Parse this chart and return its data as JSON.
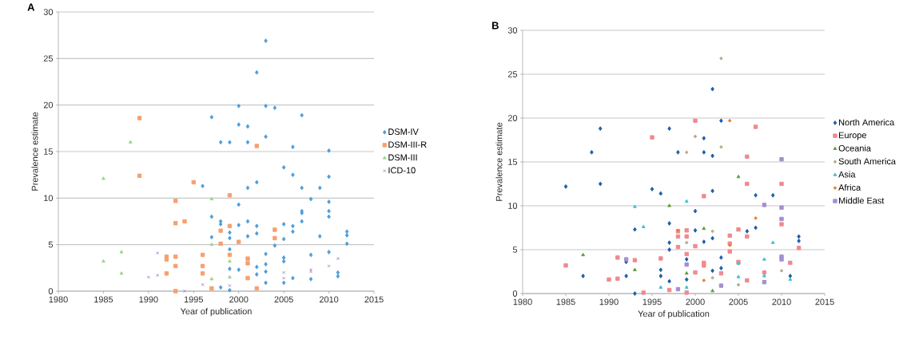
{
  "chart_data": [
    {
      "type": "scatter",
      "title": "A",
      "xlabel": "Year of publication",
      "ylabel": "Prevalence estimate",
      "xlim": [
        1980,
        2015
      ],
      "ylim": [
        0,
        30
      ],
      "xticks": [
        1980,
        1985,
        1990,
        1995,
        2000,
        2005,
        2010,
        2015
      ],
      "yticks": [
        0,
        5,
        10,
        15,
        20,
        25,
        30
      ],
      "grid": "y",
      "legend": "right",
      "series": [
        {
          "name": "DSM-IV",
          "color": "#4f9fdc",
          "marker": "diamond",
          "x": [
            2003,
            2002,
            2000,
            2003,
            2004,
            1997,
            2007,
            2000,
            2001,
            1998,
            1999,
            2001,
            2003,
            2006,
            2010,
            2005,
            2006,
            2010,
            1996,
            2001,
            2002,
            2007,
            2009,
            2008,
            2000,
            2010,
            1997,
            1998,
            1998,
            2000,
            2001,
            2002,
            1999,
            1999,
            1997,
            2001,
            2002,
            2005,
            2005,
            2006,
            2006,
            2007,
            2007,
            2007,
            2010,
            2010,
            2009,
            2012,
            2012,
            2012,
            2004,
            1999,
            2003,
            2008,
            2010,
            2005,
            2005,
            2003,
            2003,
            2002,
            2002,
            2000,
            1999,
            2006,
            2008,
            2011,
            2011,
            2003,
            2005,
            1998,
            1999
          ],
          "values": [
            26.9,
            23.5,
            19.9,
            19.9,
            19.7,
            18.7,
            18.9,
            17.9,
            17.7,
            16,
            16,
            16,
            16.6,
            15.5,
            15.1,
            13.3,
            12.5,
            12.3,
            11.3,
            11.1,
            11.7,
            11.1,
            11.1,
            9.9,
            9.3,
            9.6,
            8,
            7.5,
            7.2,
            7.1,
            7.5,
            7,
            6.3,
            5.7,
            5.8,
            5.9,
            6.2,
            7.2,
            5.6,
            7,
            6.4,
            8.6,
            8.4,
            7.5,
            8.6,
            8,
            5.9,
            6.4,
            6,
            5.1,
            4.9,
            4.5,
            4,
            3.9,
            4.2,
            3.6,
            3.2,
            2.9,
            2.1,
            2.6,
            1.8,
            2.3,
            2.4,
            1.4,
            1.3,
            2,
            1.6,
            0.9,
            0.9,
            0.4,
            0.1
          ]
        },
        {
          "name": "DSM-III-R",
          "color": "#f7a06e",
          "marker": "square",
          "x": [
            1989,
            1989,
            1995,
            1993,
            1999,
            1993,
            1994,
            1998,
            1999,
            1998,
            2000,
            1992,
            1992,
            1993,
            1993,
            1992,
            1993,
            1996,
            1996,
            1996,
            1997,
            1999,
            2002,
            2001,
            2001,
            2001,
            2002,
            2004,
            2004
          ],
          "values": [
            18.6,
            12.4,
            11.7,
            9.7,
            10.3,
            7.3,
            7.5,
            6.5,
            7,
            5.1,
            5.3,
            3.7,
            3.4,
            3.7,
            2.7,
            1.9,
            0,
            3.9,
            2.7,
            1.9,
            0.3,
            3.9,
            15.6,
            3.5,
            3,
            1.4,
            0.3,
            6.6,
            5.7
          ]
        },
        {
          "name": "DSM-III",
          "color": "#9fd68a",
          "marker": "triangle",
          "x": [
            1985,
            1985,
            1987,
            1987,
            1988,
            1997,
            1997,
            1997,
            1999,
            1999
          ],
          "values": [
            12.1,
            3.2,
            4.2,
            1.9,
            16,
            9.9,
            5,
            1.3,
            3.2,
            1.5
          ]
        },
        {
          "name": "ICD-10",
          "color": "#a88fc8",
          "marker": "cross",
          "x": [
            1990,
            1991,
            1991,
            1994,
            1996,
            1999,
            2005,
            2005,
            2008,
            2008,
            2010,
            2011
          ],
          "values": [
            1.5,
            1.7,
            4.1,
            0,
            0.7,
            0.6,
            2,
            1.4,
            2.3,
            2.1,
            2.7,
            3.5
          ]
        }
      ]
    },
    {
      "type": "scatter",
      "title": "B",
      "xlabel": "Year of publication",
      "ylabel": "Prevalence estimate",
      "xlim": [
        1980,
        2015
      ],
      "ylim": [
        0,
        30
      ],
      "xticks": [
        1980,
        1985,
        1990,
        1995,
        2000,
        2005,
        2010,
        2015
      ],
      "yticks": [
        0,
        5,
        10,
        15,
        20,
        25,
        30
      ],
      "grid": "y",
      "legend": "right",
      "series": [
        {
          "name": "North America",
          "color": "#1f5fa8",
          "marker": "diamond",
          "x": [
            1985,
            1987,
            1988,
            1989,
            1989,
            1992,
            1992,
            1993,
            1993,
            1995,
            1996,
            1996,
            1996,
            1997,
            1997,
            1997,
            1997,
            1997,
            1998,
            1999,
            1999,
            2000,
            2000,
            2001,
            2001,
            2001,
            2002,
            2003,
            2002,
            2002,
            2002,
            2002,
            2003,
            2003,
            2006,
            2007,
            2007,
            2009,
            2011,
            2012,
            2012
          ],
          "values": [
            12.2,
            2,
            16.1,
            18.8,
            12.5,
            3.6,
            2,
            7.3,
            0,
            11.9,
            11.4,
            2.7,
            2,
            18.8,
            8,
            5.8,
            5,
            1.4,
            16.1,
            3.9,
            1.6,
            9.4,
            7.2,
            16.1,
            17.7,
            5.9,
            23.3,
            19.7,
            15.7,
            11.7,
            6.3,
            2.6,
            4.1,
            2.9,
            7.1,
            7.5,
            11.2,
            11.2,
            2,
            6.5,
            6
          ]
        },
        {
          "name": "Europe",
          "color": "#f08a8f",
          "marker": "square",
          "x": [
            1985,
            1990,
            1991,
            1991,
            1993,
            1994,
            1995,
            1996,
            1997,
            1998,
            1998,
            1998,
            1999,
            1999,
            1999,
            1999,
            2000,
            2000,
            2000,
            2001,
            2001,
            2001,
            2003,
            2004,
            2004,
            2004,
            2005,
            2005,
            2006,
            2006,
            2006,
            2006,
            2007,
            2008,
            2010,
            2010,
            2011,
            2012
          ],
          "values": [
            3.2,
            1.6,
            4.1,
            1.7,
            3.8,
            0.1,
            17.8,
            4,
            0.4,
            7.1,
            6.5,
            5.3,
            7.2,
            6.5,
            4.5,
            0.1,
            19.7,
            5.4,
            2.4,
            11.1,
            3.5,
            3.2,
            2.3,
            6.6,
            5.7,
            4.8,
            7.3,
            3.6,
            15.6,
            12.5,
            6.5,
            1.5,
            19,
            2.4,
            12.5,
            7.9,
            3.5,
            5.2
          ]
        },
        {
          "name": "Oceania",
          "color": "#5f9f3a",
          "marker": "triangle",
          "x": [
            1987,
            1993,
            1997,
            1999,
            2001,
            2002,
            2005
          ],
          "values": [
            4.4,
            2.7,
            10,
            2.3,
            7.4,
            0.3,
            13.3
          ]
        },
        {
          "name": "South America",
          "color": "#b6ab8c",
          "marker": "circle",
          "x": [
            1999,
            2000,
            2003,
            2003,
            1999,
            2002,
            2002,
            2005,
            2010
          ],
          "values": [
            16.1,
            17.9,
            26.8,
            16.7,
            5.8,
            7.1,
            1.8,
            1,
            2.6
          ]
        },
        {
          "name": "Asia",
          "color": "#3fc2d8",
          "marker": "triangle",
          "x": [
            1993,
            1994,
            1996,
            1999,
            1999,
            2005,
            2005,
            2008,
            2008,
            2009,
            2011
          ],
          "values": [
            9.9,
            7.6,
            0.7,
            10.5,
            0.7,
            3.4,
            1.9,
            3.9,
            2,
            5.8,
            1.6
          ]
        },
        {
          "name": "Africa",
          "color": "#f07a30",
          "marker": "circle",
          "x": [
            2004,
            2007,
            2004,
            2001,
            1998
          ],
          "values": [
            19.7,
            8.6,
            5.5,
            1.5,
            7.2
          ]
        },
        {
          "name": "Middle East",
          "color": "#a48fd0",
          "marker": "square",
          "x": [
            1992,
            1998,
            1999,
            2003,
            2008,
            2008,
            2010,
            2010,
            2010,
            2010,
            2010
          ],
          "values": [
            3.9,
            0.5,
            3.3,
            0.9,
            1.3,
            10.1,
            15.3,
            9.8,
            8.5,
            4.2,
            3.9
          ]
        }
      ]
    }
  ]
}
